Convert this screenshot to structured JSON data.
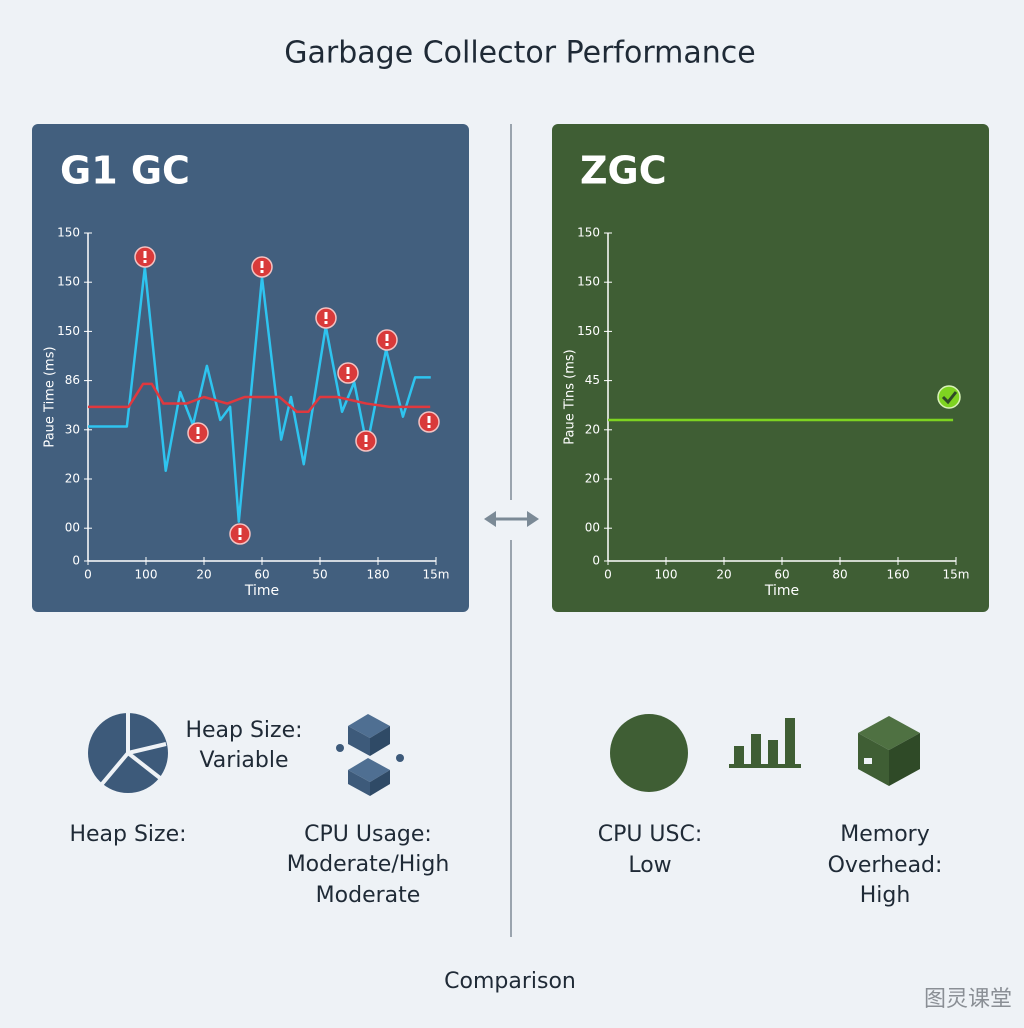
{
  "title": "Garbage Collector Performance",
  "chart_data": [
    {
      "type": "line",
      "title": "G1 GC",
      "background": "#425f7e",
      "xlabel": "Time",
      "ylabel": "Paue Time (ms)",
      "xlim": [
        0,
        60
      ],
      "ylim": [
        0,
        200
      ],
      "xticks": [
        0,
        {
          "value": 10,
          "label": "100"
        },
        20,
        {
          "value": 30,
          "label": "60"
        },
        {
          "value": 40,
          "label": "50"
        },
        {
          "value": 50,
          "label": "180"
        },
        {
          "value": 60,
          "label": "15m"
        }
      ],
      "yticks": [
        0,
        {
          "value": 20,
          "label": "00"
        },
        {
          "value": 50,
          "label": "20"
        },
        {
          "value": 80,
          "label": "30"
        },
        {
          "value": 110,
          "label": "86"
        },
        {
          "value": 140,
          "label": "150"
        },
        {
          "value": 170,
          "label": "150"
        },
        {
          "value": 200,
          "label": "150"
        }
      ],
      "series": [
        {
          "color": "#2ec4ef",
          "x": [
            0,
            6.7,
            9.8,
            13.4,
            15.9,
            18.1,
            20.5,
            22.8,
            24.5,
            26,
            30,
            33.3,
            35,
            37.2,
            41,
            43.8,
            45.9,
            48.1,
            51.4,
            54.3,
            56.4,
            59.1
          ],
          "values": [
            82,
            82,
            179,
            55,
            103,
            83,
            119,
            86,
            94,
            24,
            173,
            74,
            100,
            59,
            143,
            91,
            109,
            70,
            129,
            88,
            112,
            112
          ]
        },
        {
          "color": "#e0383e",
          "x": [
            0,
            7,
            9.5,
            11,
            13,
            17,
            20,
            24,
            27,
            33,
            36,
            38,
            40,
            43,
            48,
            52,
            59
          ],
          "values": [
            94,
            94,
            108,
            108,
            96,
            96,
            100,
            96,
            100,
            100,
            91,
            91,
            100,
            100,
            96,
            94,
            94
          ]
        }
      ]
    },
    {
      "type": "line",
      "title": "ZGC",
      "background": "#3f5e34",
      "xlabel": "Time",
      "ylabel": "Paue Tins (ms)",
      "xlim": [
        0,
        60
      ],
      "ylim": [
        0,
        200
      ],
      "xticks": [
        0,
        {
          "value": 10,
          "label": "100"
        },
        20,
        {
          "value": 30,
          "label": "60"
        },
        {
          "value": 40,
          "label": "80"
        },
        {
          "value": 50,
          "label": "160"
        },
        {
          "value": 60,
          "label": "15m"
        }
      ],
      "yticks": [
        0,
        {
          "value": 20,
          "label": "00"
        },
        {
          "value": 50,
          "label": "20"
        },
        {
          "value": 80,
          "label": "20"
        },
        {
          "value": 110,
          "label": "45"
        },
        {
          "value": 140,
          "label": "150"
        },
        {
          "value": 170,
          "label": "150"
        },
        {
          "value": 200,
          "label": "150"
        }
      ],
      "series": [
        {
          "color": "#7ed321",
          "x": [
            0,
            59.5
          ],
          "values": [
            86,
            86
          ]
        }
      ]
    }
  ],
  "g1_notes": [
    [
      "Heap Size:",
      "Variable"
    ],
    [
      "Heap Size:"
    ],
    [
      "CPU Usage:",
      "Moderate/High",
      "Moderate"
    ]
  ],
  "zgc_notes": [
    [
      "CPU USC:",
      "Low"
    ],
    [
      "Memory",
      "Overhead:",
      "High"
    ]
  ],
  "footer": "Comparison",
  "watermark": "图灵课堂"
}
